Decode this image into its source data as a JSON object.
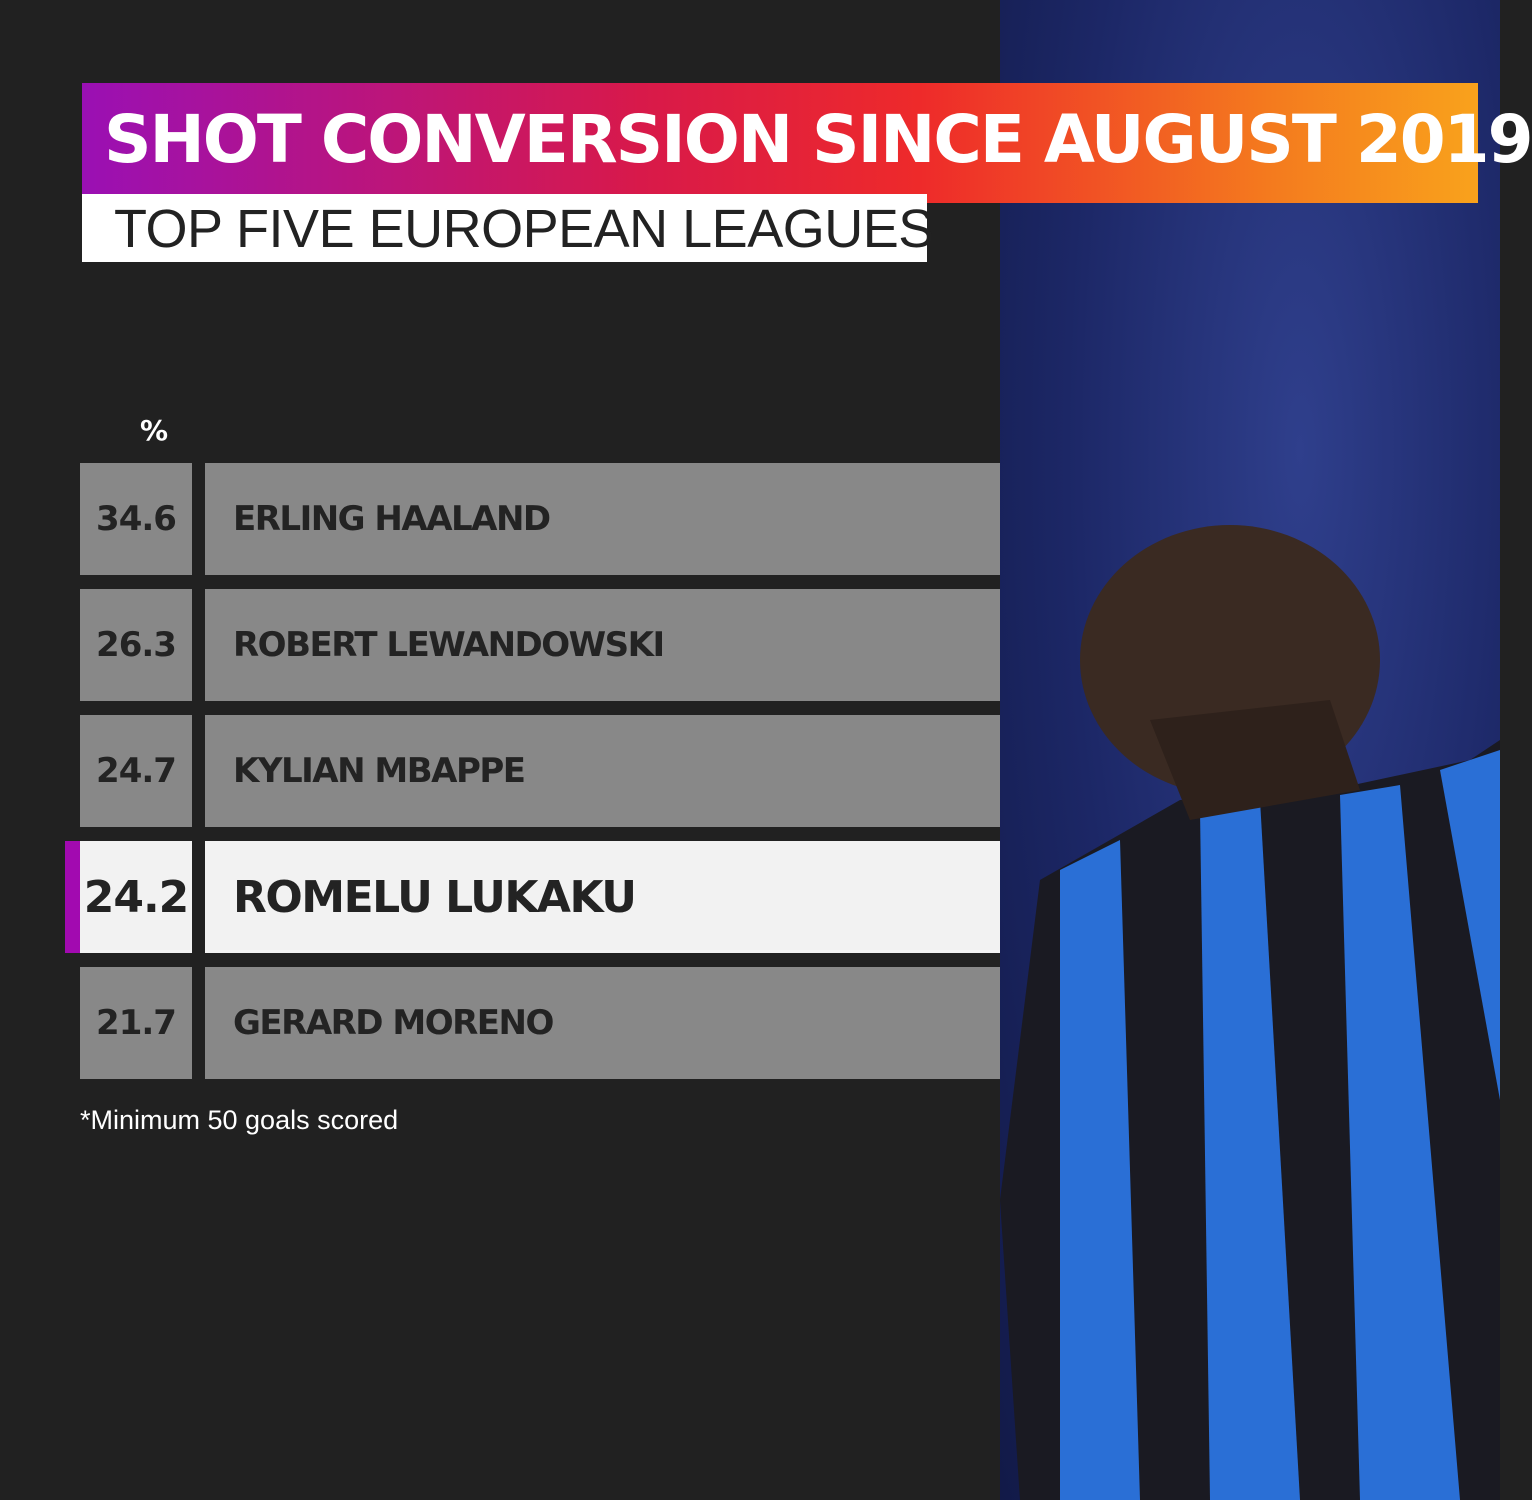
{
  "title": "SHOT CONVERSION SINCE AUGUST 2019",
  "subtitle": "TOP FIVE EUROPEAN LEAGUES",
  "colors": {
    "background": "#212121",
    "row": "#888888",
    "highlight_row": "#f2f2f2",
    "highlight_accent": "#a20ab0",
    "title_gradient": [
      "#9a10b4",
      "#ee2a2a",
      "#f9a21c"
    ]
  },
  "chart_data": {
    "type": "table",
    "title": "SHOT CONVERSION SINCE AUGUST 2019",
    "subtitle": "TOP FIVE EUROPEAN LEAGUES",
    "unit_label": "%",
    "rows": [
      {
        "value": "34.6",
        "player": "ERLING HAALAND",
        "highlighted": false
      },
      {
        "value": "26.3",
        "player": "ROBERT LEWANDOWSKI",
        "highlighted": false
      },
      {
        "value": "24.7",
        "player": "KYLIAN MBAPPE",
        "highlighted": false
      },
      {
        "value": "24.2",
        "player": "ROMELU LUKAKU",
        "highlighted": true
      },
      {
        "value": "21.7",
        "player": "GERARD MORENO",
        "highlighted": false
      }
    ],
    "footnote": "*Minimum 50 goals scored"
  },
  "photo": {
    "subject": "player-celebrating-photo"
  }
}
